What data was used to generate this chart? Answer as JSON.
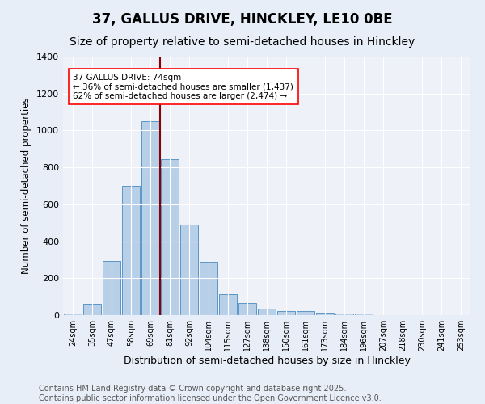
{
  "title": "37, GALLUS DRIVE, HINCKLEY, LE10 0BE",
  "subtitle": "Size of property relative to semi-detached houses in Hinckley",
  "xlabel": "Distribution of semi-detached houses by size in Hinckley",
  "ylabel": "Number of semi-detached properties",
  "categories": [
    "24sqm",
    "35sqm",
    "47sqm",
    "58sqm",
    "69sqm",
    "81sqm",
    "92sqm",
    "104sqm",
    "115sqm",
    "127sqm",
    "138sqm",
    "150sqm",
    "161sqm",
    "173sqm",
    "184sqm",
    "196sqm",
    "207sqm",
    "218sqm",
    "230sqm",
    "241sqm",
    "253sqm"
  ],
  "values": [
    10,
    60,
    295,
    700,
    1050,
    845,
    490,
    290,
    115,
    65,
    35,
    20,
    20,
    15,
    10,
    10,
    0,
    0,
    0,
    0,
    0
  ],
  "bar_color": "#b8cfe8",
  "bar_edge_color": "#5a96c8",
  "reference_line_x": 4.5,
  "reference_line_color": "#8b0000",
  "annotation_text": "37 GALLUS DRIVE: 74sqm\n← 36% of semi-detached houses are smaller (1,437)\n62% of semi-detached houses are larger (2,474) →",
  "annotation_box_color": "white",
  "annotation_box_edge_color": "red",
  "ylim": [
    0,
    1400
  ],
  "yticks": [
    0,
    200,
    400,
    600,
    800,
    1000,
    1200,
    1400
  ],
  "bg_color": "#e8eef8",
  "plot_bg_color": "#eef2f8",
  "footer_text": "Contains HM Land Registry data © Crown copyright and database right 2025.\nContains public sector information licensed under the Open Government Licence v3.0.",
  "title_fontsize": 12,
  "subtitle_fontsize": 10,
  "footer_fontsize": 7
}
